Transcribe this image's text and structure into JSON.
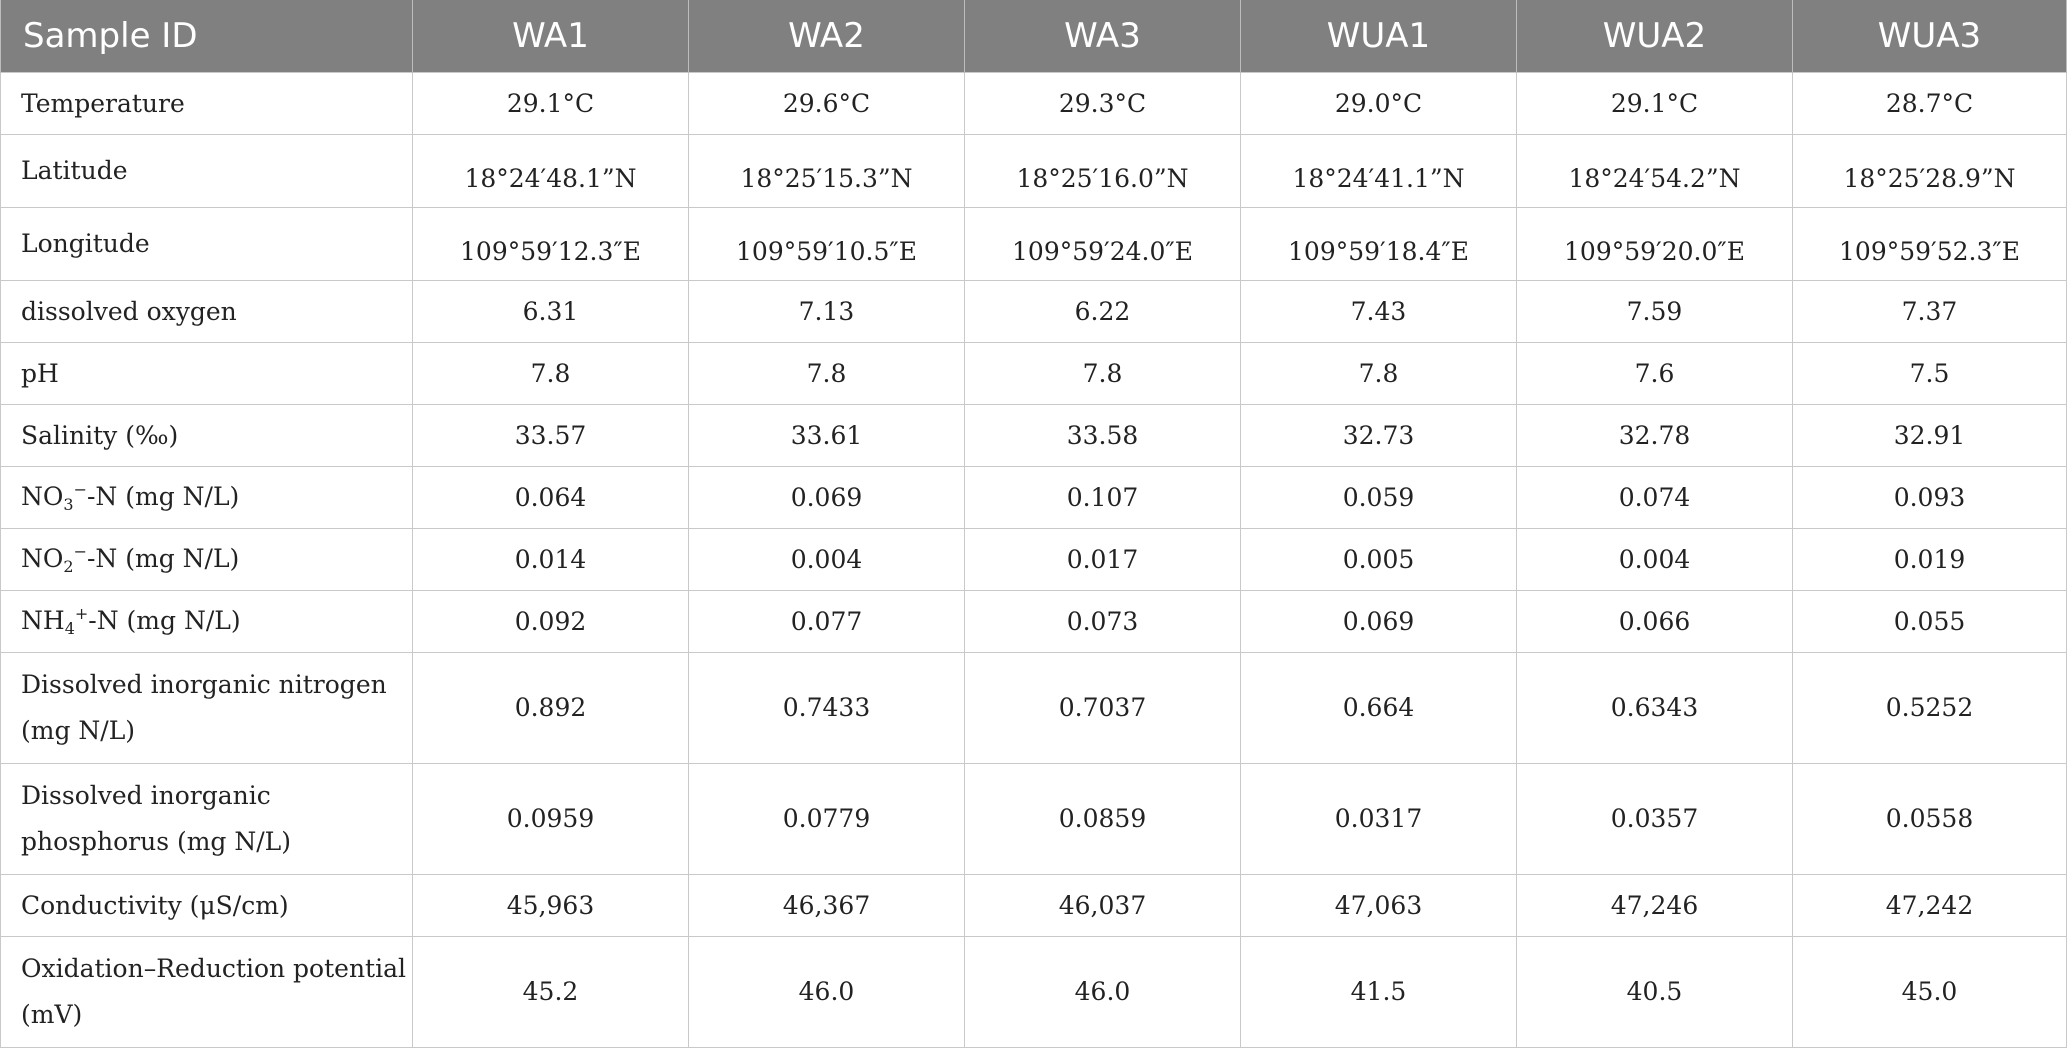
{
  "table": {
    "headers": [
      "Sample ID",
      "WA1",
      "WA2",
      "WA3",
      "WUA1",
      "WUA2",
      "WUA3"
    ],
    "rows": [
      {
        "label": "Temperature",
        "values": [
          "29.1°C",
          "29.6°C",
          "29.3°C",
          "29.0°C",
          "29.1°C",
          "28.7°C"
        ]
      },
      {
        "label": "Latitude",
        "values": [
          "18°24′48.1”N",
          "18°25′15.3”N",
          "18°25′16.0”N",
          "18°24′41.1”N",
          "18°24′54.2”N",
          "18°25′28.9”N"
        ]
      },
      {
        "label": "Longitude",
        "values": [
          "109°59′12.3″E",
          "109°59′10.5″E",
          "109°59′24.0″E",
          "109°59′18.4″E",
          "109°59′20.0″E",
          "109°59′52.3″E"
        ]
      },
      {
        "label": "dissolved oxygen",
        "values": [
          "6.31",
          "7.13",
          "6.22",
          "7.43",
          "7.59",
          "7.37"
        ]
      },
      {
        "label": "pH",
        "values": [
          "7.8",
          "7.8",
          "7.8",
          "7.8",
          "7.6",
          "7.5"
        ]
      },
      {
        "label": "Salinity (‰)",
        "values": [
          "33.57",
          "33.61",
          "33.58",
          "32.73",
          "32.78",
          "32.91"
        ]
      },
      {
        "label_pre": "NO",
        "label_sub": "3",
        "label_sup": "−",
        "label_post": "-N (mg N/L)",
        "values": [
          "0.064",
          "0.069",
          "0.107",
          "0.059",
          "0.074",
          "0.093"
        ]
      },
      {
        "label_pre": "NO",
        "label_sub": "2",
        "label_sup": "−",
        "label_post": "-N (mg N/L)",
        "values": [
          "0.014",
          "0.004",
          "0.017",
          "0.005",
          "0.004",
          "0.019"
        ]
      },
      {
        "label_pre": "NH",
        "label_sub": "4",
        "label_sup": "+",
        "label_post": "-N (mg N/L)",
        "values": [
          "0.092",
          "0.077",
          "0.073",
          "0.069",
          "0.066",
          "0.055"
        ]
      },
      {
        "label_line1": "Dissolved inorganic nitrogen",
        "label_line2": "(mg N/L)",
        "values": [
          "0.892",
          "0.7433",
          "0.7037",
          "0.664",
          "0.6343",
          "0.5252"
        ]
      },
      {
        "label_line1": "Dissolved inorganic",
        "label_line2": "phosphorus (mg N/L)",
        "values": [
          "0.0959",
          "0.0779",
          "0.0859",
          "0.0317",
          "0.0357",
          "0.0558"
        ]
      },
      {
        "label": "Conductivity (μS/cm)",
        "values": [
          "45,963",
          "46,367",
          "46,037",
          "47,063",
          "47,246",
          "47,242"
        ]
      },
      {
        "label_line1": "Oxidation–Reduction potential",
        "label_line2": "(mV)",
        "values": [
          "45.2",
          "46.0",
          "46.0",
          "41.5",
          "40.5",
          "45.0"
        ]
      }
    ]
  }
}
